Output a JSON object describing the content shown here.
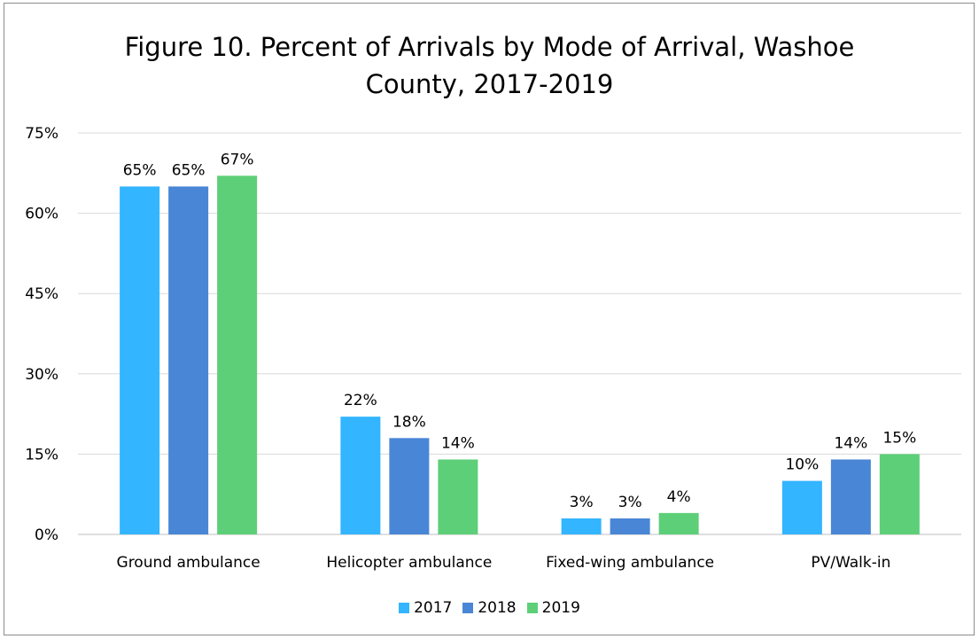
{
  "chart_data": {
    "type": "bar",
    "title_lines": [
      "Figure 10. Percent of Arrivals by Mode of Arrival, Washoe",
      "County, 2017-2019"
    ],
    "categories": [
      "Ground ambulance",
      "Helicopter ambulance",
      "Fixed-wing ambulance",
      "PV/Walk-in"
    ],
    "series": [
      {
        "name": "2017",
        "color": "#33b5ff",
        "values": [
          65,
          22,
          3,
          10
        ],
        "labels": [
          "65%",
          "22%",
          "3%",
          "10%"
        ]
      },
      {
        "name": "2018",
        "color": "#4a86d6",
        "values": [
          65,
          18,
          3,
          14
        ],
        "labels": [
          "65%",
          "18%",
          "3%",
          "14%"
        ]
      },
      {
        "name": "2019",
        "color": "#5dcf78",
        "values": [
          67,
          14,
          4,
          15
        ],
        "labels": [
          "67%",
          "14%",
          "4%",
          "15%"
        ]
      }
    ],
    "ylim": [
      0,
      75
    ],
    "yticks": [
      0,
      15,
      30,
      45,
      60,
      75
    ],
    "ytick_labels": [
      "0%",
      "15%",
      "30%",
      "45%",
      "60%",
      "75%"
    ],
    "grid": true,
    "legend_position": "bottom"
  }
}
